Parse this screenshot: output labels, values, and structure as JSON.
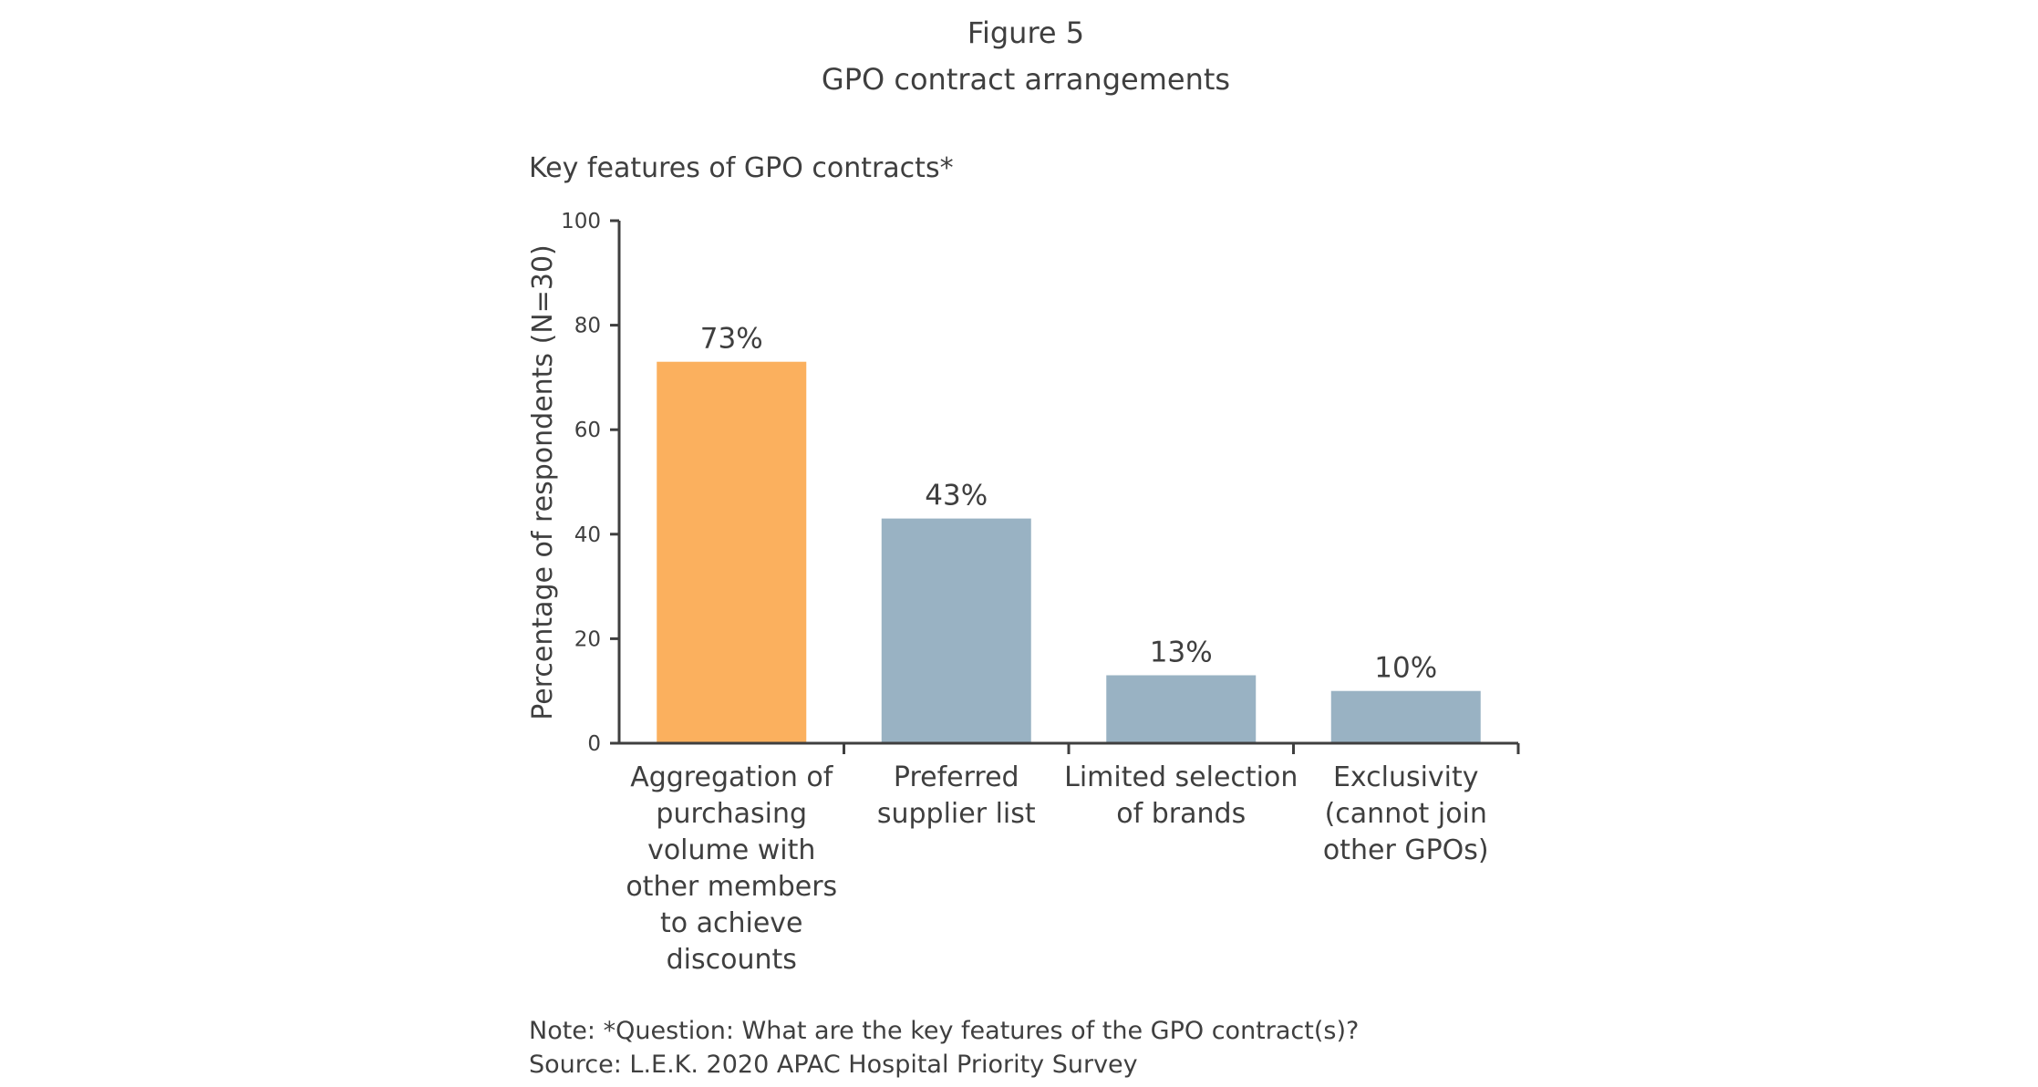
{
  "figure_label": "Figure 5",
  "chart_data": {
    "type": "bar",
    "title": "GPO contract arrangements",
    "subtitle": "Key features of GPO contracts*",
    "xlabel": "",
    "ylabel": "Percentage of respondents (N=30)",
    "ylim": [
      0,
      100
    ],
    "yticks": [
      0,
      20,
      40,
      60,
      80,
      100
    ],
    "grid": false,
    "categories": [
      [
        "Aggregation of",
        "purchasing",
        "volume with",
        "other members",
        "to achieve",
        "discounts"
      ],
      [
        "Preferred",
        "supplier list"
      ],
      [
        "Limited selection",
        "of brands"
      ],
      [
        "Exclusivity",
        "(cannot join",
        "other GPOs)"
      ]
    ],
    "values": [
      73,
      43,
      13,
      10
    ],
    "data_labels": [
      "73%",
      "43%",
      "13%",
      "10%"
    ],
    "bar_colors": [
      "#fbb05e",
      "#99b2c3",
      "#99b2c3",
      "#99b2c3"
    ]
  },
  "note": "Note: *Question: What are the key features of the GPO contract(s)?",
  "source": "Source: L.E.K. 2020 APAC Hospital Priority Survey",
  "colors": {
    "text": "#3f3f3f",
    "axis": "#3f3f3f",
    "highlight": "#fbb05e",
    "bar": "#99b2c3"
  }
}
